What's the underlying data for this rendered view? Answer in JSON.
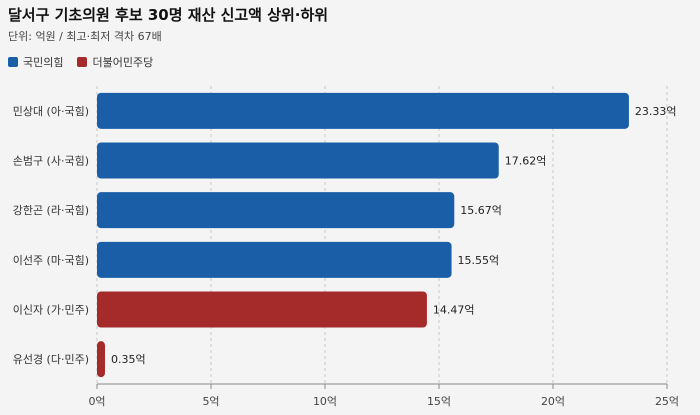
{
  "header": {
    "title": "달서구 기초의원 후보 30명 재산 신고액 상위·하위",
    "subtitle": "단위: 억원 / 최고·최저 격차 67배"
  },
  "legend": [
    {
      "label": "국민의힘",
      "color": "#1a5ea8"
    },
    {
      "label": "더불어민주당",
      "color": "#a52a2a"
    }
  ],
  "chart_data": {
    "type": "bar",
    "orientation": "horizontal",
    "title": "달서구 기초의원 후보 30명 재산 신고액 상위·하위",
    "subtitle": "단위: 억원 / 최고·최저 격차 67배",
    "categories": [
      "민상대 (아·국힘)",
      "손범구 (사·국힘)",
      "강한곤 (라·국힘)",
      "이선주 (마·국힘)",
      "이신자 (가·민주)",
      "유선경 (다·민주)"
    ],
    "values": [
      23.33,
      17.62,
      15.67,
      15.55,
      14.47,
      0.35
    ],
    "value_labels": [
      "23.33억",
      "17.62억",
      "15.67억",
      "15.55억",
      "14.47억",
      "0.35억"
    ],
    "parties": [
      "국민의힘",
      "국민의힘",
      "국민의힘",
      "국민의힘",
      "더불어민주당",
      "더불어민주당"
    ],
    "xlim": [
      0,
      25
    ],
    "xticks": [
      0,
      5,
      10,
      15,
      20,
      25
    ],
    "xtick_labels": [
      "0억",
      "5억",
      "10억",
      "15억",
      "20억",
      "25억"
    ],
    "grid": "vertical dashed",
    "legend_position": "top-left"
  }
}
